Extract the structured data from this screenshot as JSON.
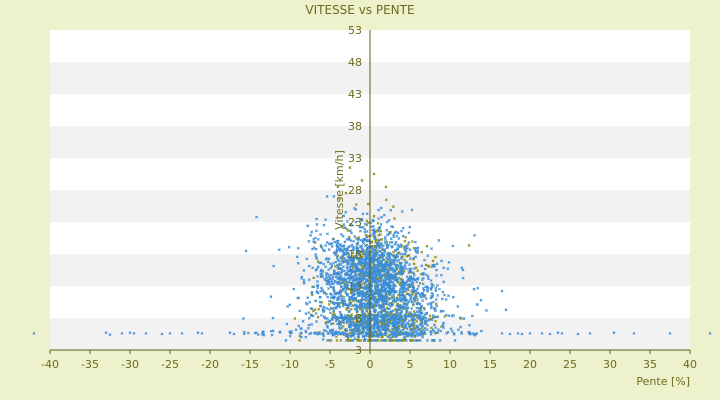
{
  "colors": {
    "page_background": "#EEF2CC",
    "plot_background": "#FFFFFF",
    "band_alt": "#F2F2F2",
    "text": "#6B6B1F",
    "axis": "#5C5C14",
    "series_blue": "#3A8DD8",
    "series_olive": "#8A8A10"
  },
  "chart_data": {
    "type": "scatter",
    "title": "VITESSE vs PENTE",
    "xlabel": "Pente [%]",
    "ylabel": "Vitesse [km/h]",
    "xlim": [
      -40,
      40
    ],
    "ylim": [
      3,
      53
    ],
    "x_ticks": [
      "-40",
      "-35",
      "-30",
      "-25",
      "-20",
      "-15",
      "-10",
      "-5",
      "0",
      "5",
      "10",
      "15",
      "20",
      "25",
      "30",
      "35",
      "40"
    ],
    "y_ticks": [
      "3",
      "8",
      "13",
      "18",
      "23",
      "28",
      "33",
      "38",
      "43",
      "48",
      "53"
    ],
    "grid": "alternating horizontal bands",
    "legend": "none",
    "series": [
      {
        "color_key": "series_blue",
        "marker": "x",
        "cloud": {
          "count": 2200,
          "x_center": 0.5,
          "x_spread": 4.2,
          "y_center": 14.5,
          "y_spread": 4.2,
          "x_range": [
            -16,
            17
          ],
          "y_range": [
            4.5,
            27
          ]
        },
        "tail": {
          "count": 90,
          "x_range": [
            -16,
            14
          ],
          "y_range": [
            5.3,
            7.5
          ],
          "rise_x": -3
        },
        "outliers": [
          [
            -42,
            5.6
          ],
          [
            -33,
            5.7
          ],
          [
            -32.5,
            5.4
          ],
          [
            -31,
            5.6
          ],
          [
            -30,
            5.7
          ],
          [
            -29.5,
            5.6
          ],
          [
            -28,
            5.6
          ],
          [
            -26,
            5.5
          ],
          [
            -25,
            5.6
          ],
          [
            -23.5,
            5.6
          ],
          [
            -21.5,
            5.7
          ],
          [
            -21,
            5.6
          ],
          [
            -17.5,
            5.7
          ],
          [
            -17,
            5.5
          ],
          [
            16.5,
            5.6
          ],
          [
            17.5,
            5.5
          ],
          [
            18.5,
            5.6
          ],
          [
            19,
            5.5
          ],
          [
            20,
            5.6
          ],
          [
            21.5,
            5.6
          ],
          [
            22.5,
            5.5
          ],
          [
            23.5,
            5.7
          ],
          [
            24,
            5.6
          ],
          [
            26,
            5.5
          ],
          [
            27.5,
            5.6
          ],
          [
            30.5,
            5.7
          ],
          [
            33,
            5.6
          ],
          [
            37.5,
            5.6
          ],
          [
            42.5,
            5.6
          ],
          [
            -15.5,
            18.5
          ],
          [
            16.5,
            12.2
          ],
          [
            13,
            12.5
          ]
        ]
      },
      {
        "color_key": "series_olive",
        "marker": "x",
        "cloud": {
          "count": 750,
          "x_center": 1,
          "x_spread": 3.6,
          "y_center": 12.5,
          "y_spread": 5.2,
          "x_range": [
            -14,
            15
          ],
          "y_range": [
            4.5,
            31
          ]
        },
        "outliers": [
          [
            -2.5,
            31.5
          ],
          [
            0.5,
            30.5
          ],
          [
            -1,
            29.5
          ],
          [
            -4,
            28.5
          ],
          [
            2,
            28.5
          ],
          [
            -3,
            27.5
          ]
        ]
      }
    ]
  }
}
